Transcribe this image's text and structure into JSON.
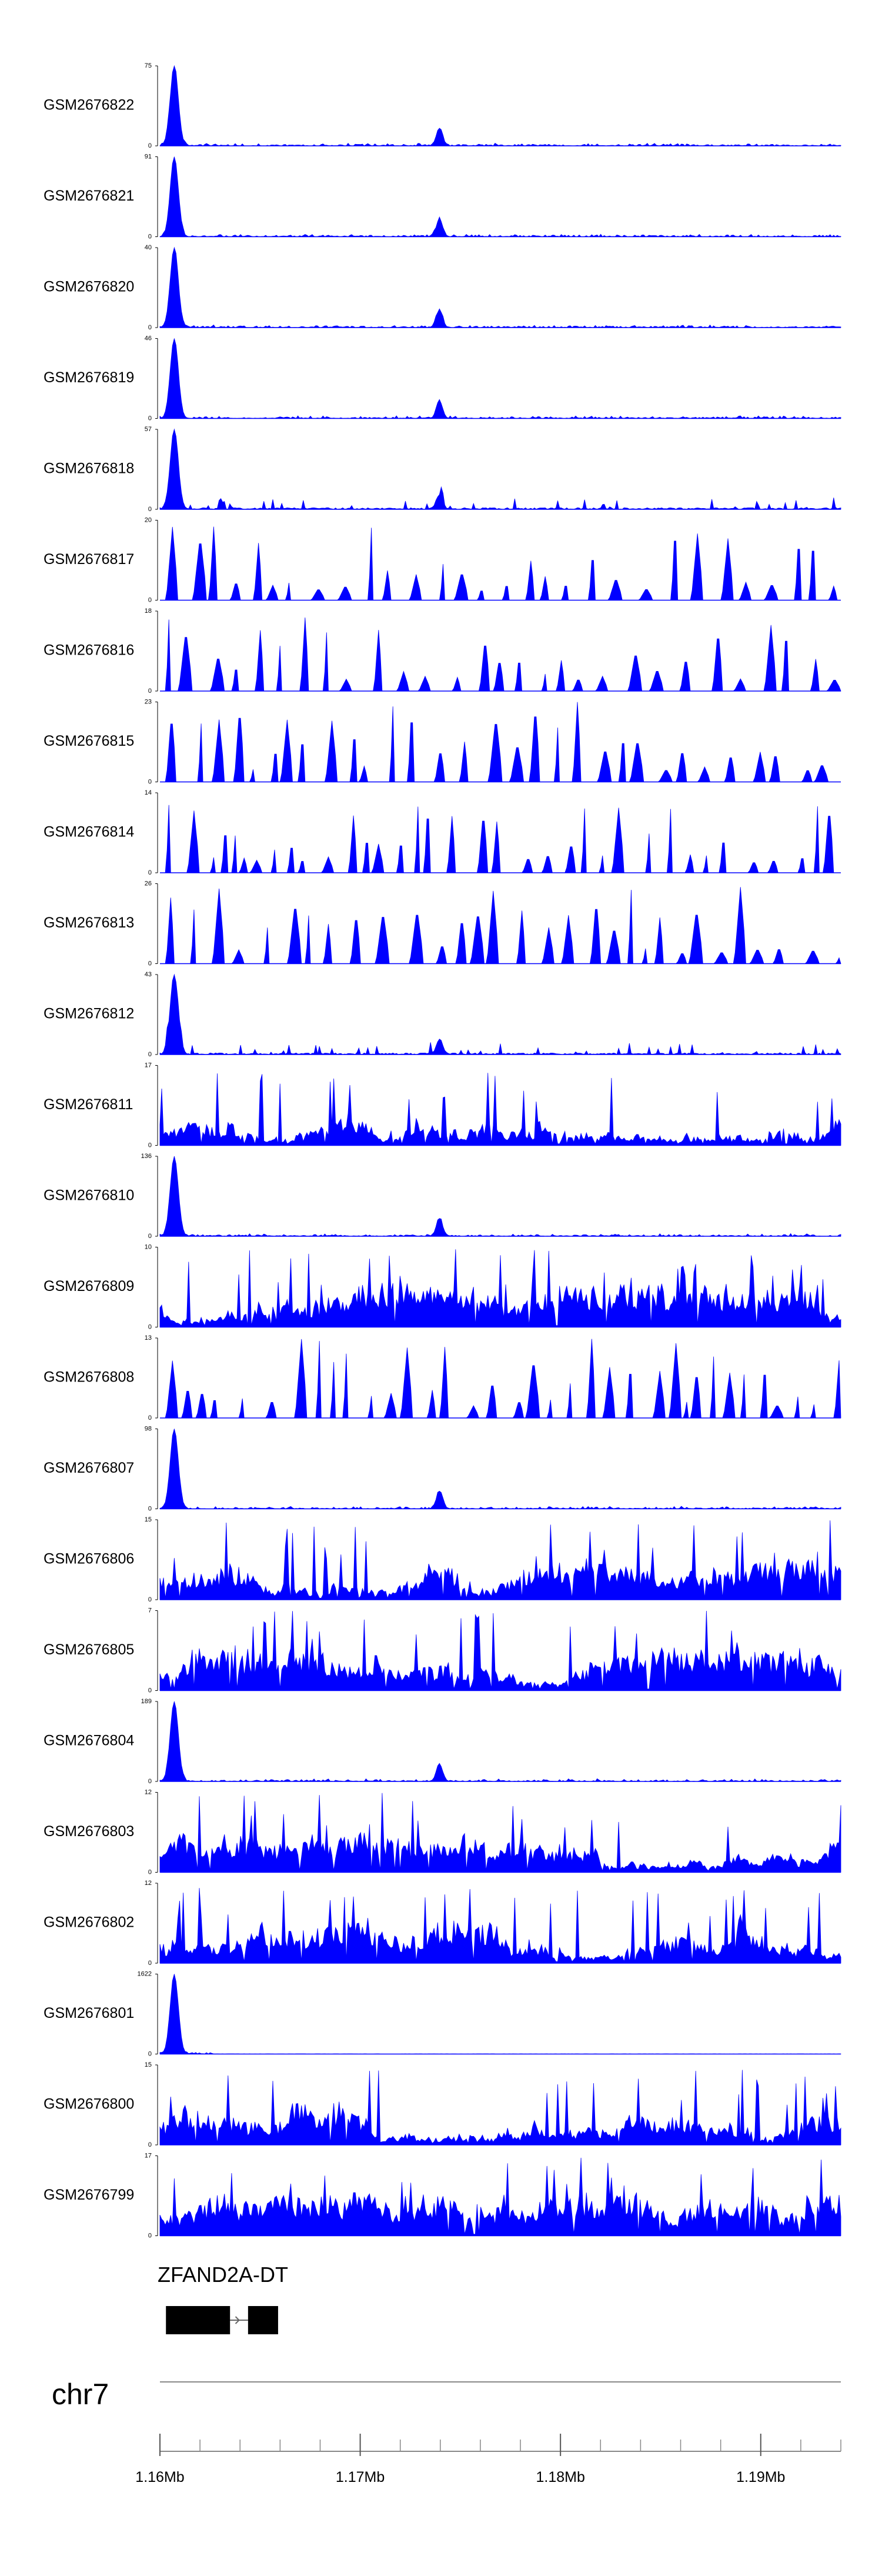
{
  "chart_data": {
    "type": "area",
    "title": "",
    "color": "#0000ff",
    "x_range": [
      1.16,
      1.194
    ],
    "x_unit": "Mb",
    "tracks": [
      {
        "name": "GSM2676822",
        "max": "75",
        "ymax": 75,
        "profile": "peak",
        "seed": 1
      },
      {
        "name": "GSM2676821",
        "max": "91",
        "ymax": 91,
        "profile": "peak",
        "seed": 2
      },
      {
        "name": "GSM2676820",
        "max": "40",
        "ymax": 40,
        "profile": "peak",
        "seed": 3
      },
      {
        "name": "GSM2676819",
        "max": "46",
        "ymax": 46,
        "profile": "peak",
        "seed": 4
      },
      {
        "name": "GSM2676818",
        "max": "57",
        "ymax": 57,
        "profile": "peak_sparse",
        "seed": 5
      },
      {
        "name": "GSM2676817",
        "max": "20",
        "ymax": 20,
        "profile": "sparse",
        "seed": 6
      },
      {
        "name": "GSM2676816",
        "max": "18",
        "ymax": 18,
        "profile": "sparse",
        "seed": 7
      },
      {
        "name": "GSM2676815",
        "max": "23",
        "ymax": 23,
        "profile": "sparse",
        "seed": 8
      },
      {
        "name": "GSM2676814",
        "max": "14",
        "ymax": 14,
        "profile": "sparse",
        "seed": 9
      },
      {
        "name": "GSM2676813",
        "max": "26",
        "ymax": 26,
        "profile": "sparse",
        "seed": 10
      },
      {
        "name": "GSM2676812",
        "max": "43",
        "ymax": 43,
        "profile": "peak_sparse",
        "seed": 11
      },
      {
        "name": "GSM2676811",
        "max": "17",
        "ymax": 17,
        "profile": "dense",
        "seed": 12
      },
      {
        "name": "GSM2676810",
        "max": "136",
        "ymax": 136,
        "profile": "peak",
        "seed": 13
      },
      {
        "name": "GSM2676809",
        "max": "10",
        "ymax": 10,
        "profile": "dense",
        "seed": 14
      },
      {
        "name": "GSM2676808",
        "max": "13",
        "ymax": 13,
        "profile": "sparse",
        "seed": 15
      },
      {
        "name": "GSM2676807",
        "max": "98",
        "ymax": 98,
        "profile": "peak",
        "seed": 16
      },
      {
        "name": "GSM2676806",
        "max": "15",
        "ymax": 15,
        "profile": "dense",
        "seed": 17
      },
      {
        "name": "GSM2676805",
        "max": "7",
        "ymax": 7,
        "profile": "dense",
        "seed": 18
      },
      {
        "name": "GSM2676804",
        "max": "189",
        "ymax": 189,
        "profile": "peak",
        "seed": 19
      },
      {
        "name": "GSM2676803",
        "max": "12",
        "ymax": 12,
        "profile": "dense",
        "seed": 20
      },
      {
        "name": "GSM2676802",
        "max": "12",
        "ymax": 12,
        "profile": "dense",
        "seed": 21
      },
      {
        "name": "GSM2676801",
        "max": "1622",
        "ymax": 1622,
        "profile": "single_peak",
        "seed": 22
      },
      {
        "name": "GSM2676800",
        "max": "15",
        "ymax": 15,
        "profile": "dense",
        "seed": 23
      },
      {
        "name": "GSM2676799",
        "max": "17",
        "ymax": 17,
        "profile": "dense",
        "seed": 24
      }
    ],
    "y_min_label": "0",
    "gene": {
      "name": "ZFAND2A-DT",
      "exons_mb": [
        [
          1.1603,
          1.1635
        ],
        [
          1.1644,
          1.1659
        ]
      ],
      "strand": "+"
    },
    "chromosome": "chr7",
    "ticks": [
      {
        "value": 1.16,
        "label": "1.16Mb"
      },
      {
        "value": 1.17,
        "label": "1.17Mb"
      },
      {
        "value": 1.18,
        "label": "1.18Mb"
      },
      {
        "value": 1.19,
        "label": "1.19Mb"
      }
    ],
    "minor_tick_step_mb": 0.002
  }
}
